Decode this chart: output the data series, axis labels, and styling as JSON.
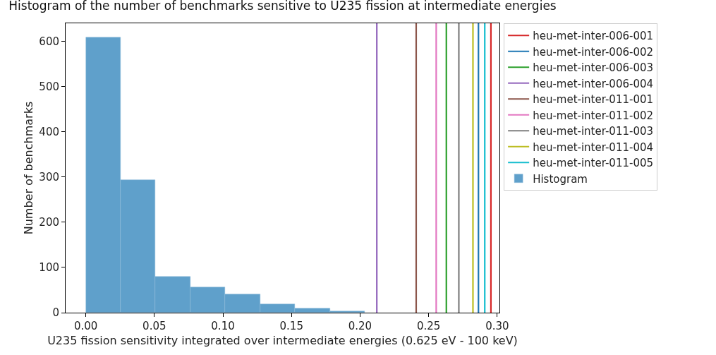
{
  "chart_data": {
    "type": "histogram",
    "title": "Histogram of the number of benchmarks sensitive to U235 fission at intermediate energies",
    "xlabel": "U235 fission sensitivity integrated over intermediate energies (0.625 eV - 100 keV)",
    "ylabel": "Number of benchmarks",
    "bins": [
      0,
      0.0254,
      0.0508,
      0.0763,
      0.1017,
      0.1271,
      0.1525,
      0.178,
      0.2034
    ],
    "series": [
      {
        "name": "heu-met-inter-006-001",
        "type": "line",
        "color": "#d62728",
        "x": [
          0.2954,
          0.2954
        ],
        "values": [
          0,
          640
        ]
      },
      {
        "name": "heu-met-inter-006-002",
        "type": "line",
        "color": "#1f77b4",
        "x": [
          0.2863,
          0.2863
        ],
        "values": [
          0,
          640
        ]
      },
      {
        "name": "heu-met-inter-006-003",
        "type": "line",
        "color": "#2ca02c",
        "x": [
          0.2629,
          0.2629
        ],
        "values": [
          0,
          640
        ]
      },
      {
        "name": "heu-met-inter-006-004",
        "type": "line",
        "color": "#9467bd",
        "x": [
          0.2122,
          0.2122
        ],
        "values": [
          0,
          640
        ]
      },
      {
        "name": "heu-met-inter-011-001",
        "type": "line",
        "color": "#8c564b",
        "x": [
          0.2409,
          0.2409
        ],
        "values": [
          0,
          640
        ]
      },
      {
        "name": "heu-met-inter-011-002",
        "type": "line",
        "color": "#e377c2",
        "x": [
          0.2555,
          0.2555
        ],
        "values": [
          0,
          640
        ]
      },
      {
        "name": "heu-met-inter-011-003",
        "type": "line",
        "color": "#7f7f7f",
        "x": [
          0.272,
          0.272
        ],
        "values": [
          0,
          640
        ]
      },
      {
        "name": "heu-met-inter-011-004",
        "type": "line",
        "color": "#bcbd22",
        "x": [
          0.2823,
          0.2823
        ],
        "values": [
          0,
          640
        ]
      },
      {
        "name": "heu-met-inter-011-005",
        "type": "line",
        "color": "#17becf",
        "x": [
          0.2909,
          0.2909
        ],
        "values": [
          0,
          640
        ]
      },
      {
        "name": "Histogram",
        "color": "#5fa0cb",
        "values": [
          609,
          294,
          79,
          56,
          40,
          19,
          10,
          3
        ]
      }
    ],
    "xlim": [
      -0.0147,
      0.3016
    ],
    "xticks": [
      {
        "value": 0,
        "label": "0.00"
      },
      {
        "value": 0.05,
        "label": "0.05"
      },
      {
        "value": 0.1,
        "label": "0.10"
      },
      {
        "value": 0.15,
        "label": "0.15"
      },
      {
        "value": 0.2,
        "label": "0.20"
      },
      {
        "value": 0.25,
        "label": "0.25"
      },
      {
        "value": 0.3,
        "label": "0.30"
      }
    ],
    "ylim": [
      0,
      640
    ],
    "yticks": [
      0,
      100,
      200,
      300,
      400,
      500,
      600
    ],
    "legend": "right",
    "marker": "none",
    "line_style": "solid"
  }
}
